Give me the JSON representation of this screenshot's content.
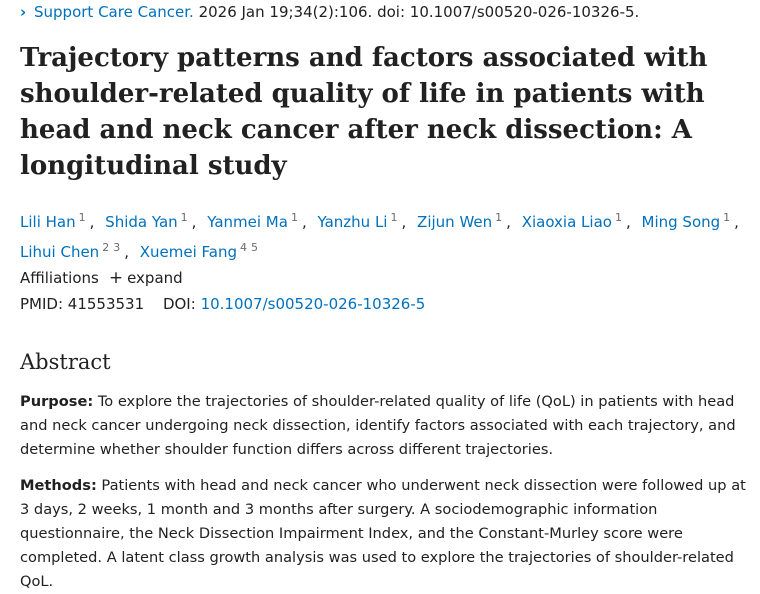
{
  "citation": {
    "journal": "Support Care Cancer.",
    "details": "2026 Jan 19;34(2):106. doi: 10.1007/s00520-026-10326-5."
  },
  "title": "Trajectory patterns and factors associated with shoulder-related quality of life in patients with head and neck cancer after neck dissection: A longitudinal study",
  "authors": [
    {
      "name": "Lili Han",
      "affs": [
        "1"
      ]
    },
    {
      "name": "Shida Yan",
      "affs": [
        "1"
      ]
    },
    {
      "name": "Yanmei Ma",
      "affs": [
        "1"
      ]
    },
    {
      "name": "Yanzhu Li",
      "affs": [
        "1"
      ]
    },
    {
      "name": "Zijun Wen",
      "affs": [
        "1"
      ]
    },
    {
      "name": "Xiaoxia Liao",
      "affs": [
        "1"
      ]
    },
    {
      "name": "Ming Song",
      "affs": [
        "1"
      ]
    },
    {
      "name": "Lihui Chen",
      "affs": [
        "2",
        "3"
      ]
    },
    {
      "name": "Xuemei Fang",
      "affs": [
        "4",
        "5"
      ]
    }
  ],
  "affiliations": {
    "label": "Affiliations",
    "expand_label": "expand"
  },
  "ids": {
    "pmid_label": "PMID:",
    "pmid": "41553531",
    "doi_label": "DOI:",
    "doi": "10.1007/s00520-026-10326-5"
  },
  "abstract": {
    "heading": "Abstract",
    "sections": [
      {
        "label": "Purpose:",
        "text": "To explore the trajectories of shoulder-related quality of life (QoL) in patients with head and neck cancer undergoing neck dissection, identify factors associated with each trajectory, and determine whether shoulder function differs across different trajectories."
      },
      {
        "label": "Methods:",
        "text": "Patients with head and neck cancer who underwent neck dissection were followed up at 3 days, 2 weeks, 1 month and 3 months after surgery. A sociodemographic information questionnaire, the Neck Dissection Impairment Index, and the Constant-Murley score were completed. A latent class growth analysis was used to explore the trajectories of shoulder-related QoL."
      }
    ]
  }
}
